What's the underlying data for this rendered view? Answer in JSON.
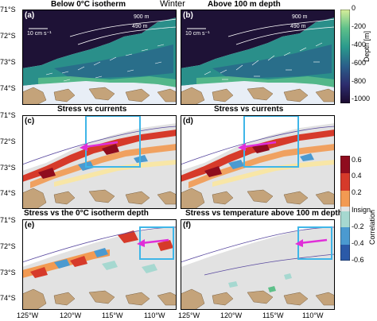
{
  "figure": {
    "season": "Winter",
    "lat_ticks": [
      "71°S",
      "72°S",
      "73°S",
      "74°S"
    ],
    "lon_ticks": [
      "125°W",
      "120°W",
      "115°W",
      "110°W"
    ]
  },
  "panels": [
    {
      "id": "a",
      "label": "(a)",
      "title": "Below 0°C isotherm",
      "kind": "depth",
      "speed_label": "10 cm s⁻¹",
      "contour_labels": [
        "900 m",
        "490 m"
      ]
    },
    {
      "id": "b",
      "label": "(b)",
      "title": "Above 100 m depth",
      "kind": "depth",
      "speed_label": "10 cm s⁻¹",
      "contour_labels": [
        "900 m",
        "490 m"
      ]
    },
    {
      "id": "c",
      "label": "(c)",
      "title": "Stress vs currents",
      "kind": "corr"
    },
    {
      "id": "d",
      "label": "(d)",
      "title": "Stress vs currents",
      "kind": "corr"
    },
    {
      "id": "e",
      "label": "(e)",
      "title": "Stress vs the 0°C isotherm depth",
      "kind": "corr"
    },
    {
      "id": "f",
      "label": "(f)",
      "title": "Stress vs temperature above 100 m depth",
      "kind": "corr_sparse"
    }
  ],
  "colorbars": {
    "depth": {
      "label": "Depth [m]",
      "ticks": [
        "0",
        "-200",
        "-400",
        "-600",
        "-800",
        "-1000"
      ],
      "range": [
        -1000,
        0
      ],
      "colors": [
        "#1b0a2e",
        "#2d2d6e",
        "#2a5f8a",
        "#2a9a8c",
        "#5ec08a",
        "#d8ee9a"
      ]
    },
    "correlation": {
      "label": "Correlation",
      "ticks": [
        "0.6",
        "0.4",
        "0.2",
        "Insign.",
        "-0.2",
        "-0.4",
        "-0.6"
      ],
      "range": [
        -0.6,
        0.6
      ],
      "insignificant_color": "#e2e2e2",
      "colors": [
        "#2b5aa8",
        "#4b9ad0",
        "#a6d8d0",
        "#fbe7a0",
        "#f29a52",
        "#d63a2a",
        "#8f0c1e"
      ]
    }
  },
  "chart_data": [
    {
      "type": "heatmap",
      "panel": "a",
      "title": "Below 0°C isotherm",
      "variable": "Depth [m]",
      "xlabel": "",
      "ylabel": "",
      "x_ticks": [
        "125°W",
        "120°W",
        "115°W",
        "110°W"
      ],
      "y_ticks": [
        "71°S",
        "72°S",
        "73°S",
        "74°S"
      ],
      "vrange": [
        -1000,
        0
      ],
      "vector_scale": "10 cm s⁻¹",
      "contours": [
        "900 m",
        "490 m"
      ]
    },
    {
      "type": "heatmap",
      "panel": "b",
      "title": "Above 100 m depth",
      "variable": "Depth [m]",
      "xlabel": "",
      "ylabel": "",
      "x_ticks": [
        "125°W",
        "120°W",
        "115°W",
        "110°W"
      ],
      "y_ticks": [
        "71°S",
        "72°S",
        "73°S",
        "74°S"
      ],
      "vrange": [
        -1000,
        0
      ],
      "vector_scale": "10 cm s⁻¹",
      "contours": [
        "900 m",
        "490 m"
      ]
    },
    {
      "type": "heatmap",
      "panel": "c",
      "title": "Stress vs currents",
      "variable": "Correlation",
      "x_ticks": [
        "125°W",
        "120°W",
        "115°W",
        "110°W"
      ],
      "y_ticks": [
        "71°S",
        "72°S",
        "73°S",
        "74°S"
      ],
      "vrange": [
        -0.6,
        0.6
      ],
      "box_lon": [
        -115.5,
        -110.5
      ],
      "box_lat": [
        -73.2,
        -71.1
      ]
    },
    {
      "type": "heatmap",
      "panel": "d",
      "title": "Stress vs currents",
      "variable": "Correlation",
      "x_ticks": [
        "125°W",
        "120°W",
        "115°W",
        "110°W"
      ],
      "y_ticks": [
        "71°S",
        "72°S",
        "73°S",
        "74°S"
      ],
      "vrange": [
        -0.6,
        0.6
      ],
      "box_lon": [
        -115.5,
        -110.5
      ],
      "box_lat": [
        -73.2,
        -71.1
      ]
    },
    {
      "type": "heatmap",
      "panel": "e",
      "title": "Stress vs the 0°C isotherm depth",
      "variable": "Correlation",
      "x_ticks": [
        "125°W",
        "120°W",
        "115°W",
        "110°W"
      ],
      "y_ticks": [
        "71°S",
        "72°S",
        "73°S",
        "74°S"
      ],
      "vrange": [
        -0.6,
        0.6
      ],
      "box_lon": [
        -111.5,
        -108.8
      ],
      "box_lat": [
        -72.9,
        -71.6
      ]
    },
    {
      "type": "heatmap",
      "panel": "f",
      "title": "Stress vs temperature above 100 m depth",
      "variable": "Correlation",
      "x_ticks": [
        "125°W",
        "120°W",
        "115°W",
        "110°W"
      ],
      "y_ticks": [
        "71°S",
        "72°S",
        "73°S",
        "74°S"
      ],
      "vrange": [
        -0.6,
        0.6
      ],
      "box_lon": [
        -111.5,
        -108.8
      ],
      "box_lat": [
        -72.9,
        -71.6
      ]
    }
  ]
}
